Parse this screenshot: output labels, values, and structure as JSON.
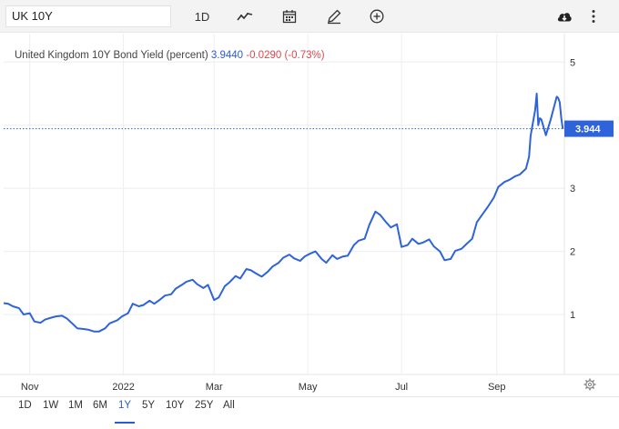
{
  "toolbar": {
    "symbol": "UK 10Y",
    "interval_label": "1D",
    "icons": [
      "line-chart-icon",
      "calendar-icon",
      "pencil-icon",
      "plus-circle-icon",
      "download-icon",
      "more-vertical-icon"
    ]
  },
  "legend": {
    "name": "United Kingdom 10Y Bond Yield (percent)",
    "value": "3.9440",
    "change": "-0.0290 (-0.73%)"
  },
  "price_label": "3.944",
  "ranges": [
    "1D",
    "1W",
    "1M",
    "6M",
    "1Y",
    "5Y",
    "10Y",
    "25Y",
    "All"
  ],
  "active_range": "1Y",
  "colors": {
    "line": "#2f63d9",
    "accent": "#2a5bd7",
    "negative": "#e0474c"
  },
  "chart_data": {
    "type": "line",
    "title": "",
    "xlabel": "",
    "ylabel": "",
    "ylim": [
      0.05,
      5.45
    ],
    "yticks": [
      1,
      2,
      3,
      4,
      5
    ],
    "x_ticks": [
      {
        "label": "Nov",
        "date": "2021-11-01"
      },
      {
        "label": "2022",
        "date": "2022-01-01"
      },
      {
        "label": "Mar",
        "date": "2022-03-01"
      },
      {
        "label": "May",
        "date": "2022-05-01"
      },
      {
        "label": "Jul",
        "date": "2022-07-01"
      },
      {
        "label": "Sep",
        "date": "2022-09-01"
      }
    ],
    "xlim": [
      "2021-10-15",
      "2022-10-15"
    ],
    "grid": true,
    "last_value": 3.944,
    "series": [
      {
        "points": [
          [
            "2021-10-15",
            1.18
          ],
          [
            "2021-10-18",
            1.17
          ],
          [
            "2021-10-21",
            1.13
          ],
          [
            "2021-10-25",
            1.1
          ],
          [
            "2021-10-28",
            1.0
          ],
          [
            "2021-11-01",
            1.02
          ],
          [
            "2021-11-04",
            0.89
          ],
          [
            "2021-11-08",
            0.87
          ],
          [
            "2021-11-11",
            0.92
          ],
          [
            "2021-11-15",
            0.95
          ],
          [
            "2021-11-18",
            0.97
          ],
          [
            "2021-11-22",
            0.98
          ],
          [
            "2021-11-25",
            0.94
          ],
          [
            "2021-11-29",
            0.85
          ],
          [
            "2021-12-02",
            0.78
          ],
          [
            "2021-12-06",
            0.77
          ],
          [
            "2021-12-09",
            0.76
          ],
          [
            "2021-12-13",
            0.73
          ],
          [
            "2021-12-16",
            0.73
          ],
          [
            "2021-12-20",
            0.78
          ],
          [
            "2021-12-23",
            0.86
          ],
          [
            "2021-12-28",
            0.91
          ],
          [
            "2021-12-31",
            0.97
          ],
          [
            "2022-01-04",
            1.02
          ],
          [
            "2022-01-07",
            1.17
          ],
          [
            "2022-01-11",
            1.13
          ],
          [
            "2022-01-14",
            1.15
          ],
          [
            "2022-01-18",
            1.22
          ],
          [
            "2022-01-21",
            1.17
          ],
          [
            "2022-01-25",
            1.24
          ],
          [
            "2022-01-28",
            1.3
          ],
          [
            "2022-02-01",
            1.32
          ],
          [
            "2022-02-04",
            1.41
          ],
          [
            "2022-02-08",
            1.47
          ],
          [
            "2022-02-11",
            1.52
          ],
          [
            "2022-02-15",
            1.55
          ],
          [
            "2022-02-18",
            1.48
          ],
          [
            "2022-02-22",
            1.42
          ],
          [
            "2022-02-25",
            1.47
          ],
          [
            "2022-03-01",
            1.23
          ],
          [
            "2022-03-04",
            1.27
          ],
          [
            "2022-03-08",
            1.45
          ],
          [
            "2022-03-11",
            1.51
          ],
          [
            "2022-03-15",
            1.61
          ],
          [
            "2022-03-18",
            1.57
          ],
          [
            "2022-03-22",
            1.72
          ],
          [
            "2022-03-25",
            1.7
          ],
          [
            "2022-03-29",
            1.64
          ],
          [
            "2022-04-01",
            1.6
          ],
          [
            "2022-04-05",
            1.68
          ],
          [
            "2022-04-08",
            1.76
          ],
          [
            "2022-04-12",
            1.82
          ],
          [
            "2022-04-15",
            1.9
          ],
          [
            "2022-04-19",
            1.95
          ],
          [
            "2022-04-22",
            1.89
          ],
          [
            "2022-04-26",
            1.85
          ],
          [
            "2022-04-29",
            1.92
          ],
          [
            "2022-05-03",
            1.97
          ],
          [
            "2022-05-06",
            2.0
          ],
          [
            "2022-05-10",
            1.88
          ],
          [
            "2022-05-13",
            1.82
          ],
          [
            "2022-05-17",
            1.94
          ],
          [
            "2022-05-20",
            1.88
          ],
          [
            "2022-05-24",
            1.92
          ],
          [
            "2022-05-27",
            1.93
          ],
          [
            "2022-05-31",
            2.1
          ],
          [
            "2022-06-03",
            2.17
          ],
          [
            "2022-06-07",
            2.2
          ],
          [
            "2022-06-10",
            2.42
          ],
          [
            "2022-06-14",
            2.63
          ],
          [
            "2022-06-17",
            2.58
          ],
          [
            "2022-06-21",
            2.46
          ],
          [
            "2022-06-24",
            2.38
          ],
          [
            "2022-06-28",
            2.43
          ],
          [
            "2022-07-01",
            2.07
          ],
          [
            "2022-07-05",
            2.1
          ],
          [
            "2022-07-08",
            2.2
          ],
          [
            "2022-07-12",
            2.12
          ],
          [
            "2022-07-15",
            2.14
          ],
          [
            "2022-07-19",
            2.19
          ],
          [
            "2022-07-22",
            2.08
          ],
          [
            "2022-07-26",
            2.0
          ],
          [
            "2022-07-29",
            1.86
          ],
          [
            "2022-08-02",
            1.88
          ],
          [
            "2022-08-05",
            2.01
          ],
          [
            "2022-08-09",
            2.04
          ],
          [
            "2022-08-12",
            2.11
          ],
          [
            "2022-08-16",
            2.2
          ],
          [
            "2022-08-19",
            2.46
          ],
          [
            "2022-08-23",
            2.6
          ],
          [
            "2022-08-26",
            2.7
          ],
          [
            "2022-08-30",
            2.85
          ],
          [
            "2022-09-02",
            3.02
          ],
          [
            "2022-09-06",
            3.1
          ],
          [
            "2022-09-09",
            3.13
          ],
          [
            "2022-09-13",
            3.19
          ],
          [
            "2022-09-16",
            3.22
          ],
          [
            "2022-09-20",
            3.31
          ],
          [
            "2022-09-22",
            3.5
          ],
          [
            "2022-09-23",
            3.83
          ],
          [
            "2022-09-26",
            4.24
          ],
          [
            "2022-09-27",
            4.5
          ],
          [
            "2022-09-28",
            4.0
          ],
          [
            "2022-09-29",
            4.11
          ],
          [
            "2022-09-30",
            4.09
          ],
          [
            "2022-10-03",
            3.84
          ],
          [
            "2022-10-06",
            4.08
          ],
          [
            "2022-10-10",
            4.45
          ],
          [
            "2022-10-11",
            4.43
          ],
          [
            "2022-10-12",
            4.36
          ],
          [
            "2022-10-13",
            4.11
          ],
          [
            "2022-10-14",
            3.94
          ]
        ]
      }
    ]
  }
}
